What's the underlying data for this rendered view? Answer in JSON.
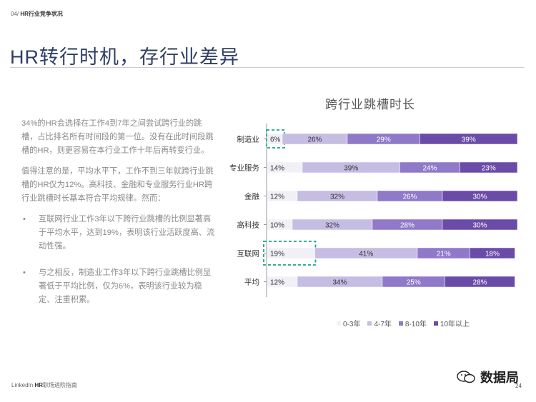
{
  "header": {
    "section_number": "04/",
    "section_name": "HR行业竞争状况",
    "title": "HR转行时机，存行业差异"
  },
  "body": {
    "paragraph1": "34%的HR会选择在工作4到7年之间尝试跨行业的跳槽，占比排名所有时间段的第一位。没有在此时间段跳槽的HR，则更容易在本行业工作十年后再转变行业。",
    "paragraph2": "值得注意的是，平均水平下，工作不到三年就跨行业跳槽的HR仅为12%。高科技、金融和专业服务行业HR跨行业跳槽时长基本符合平均规律。然而：",
    "bullets": [
      "互联网行业工作3年以下跨行业跳槽的比例显著高于平均水平，达到19%，表明该行业活跃度高、流动性强。",
      "与之相反，制造业工作3年以下跨行业跳槽比例显著低于平均比例，仅为6%，表明该行业较为稳定、注重积累。"
    ],
    "bullet_symbol": "•"
  },
  "chart_data": {
    "type": "bar",
    "orientation": "horizontal",
    "stacked": true,
    "normalized": true,
    "title": "跨行业跳槽时长",
    "categories": [
      "制造业",
      "专业服务",
      "金融",
      "高科技",
      "互联网",
      "平均"
    ],
    "series": [
      {
        "name": "0-3年",
        "values": [
          6,
          14,
          12,
          10,
          19,
          12
        ],
        "color": "#f2f0f7"
      },
      {
        "name": "4-7年",
        "values": [
          26,
          39,
          32,
          32,
          41,
          34
        ],
        "color": "#c6bde3"
      },
      {
        "name": "8-10年",
        "values": [
          29,
          24,
          26,
          28,
          21,
          25
        ],
        "color": "#8f79c8"
      },
      {
        "name": "10年以上",
        "values": [
          39,
          23,
          30,
          30,
          18,
          28
        ],
        "color": "#6a4ca8"
      }
    ],
    "value_suffix": "%",
    "highlighted": [
      {
        "category": "制造业",
        "series": "0-3年"
      },
      {
        "category": "互联网",
        "series": "0-3年"
      }
    ],
    "highlight_color": "#1aa38c",
    "legend_position": "bottom",
    "grid": false
  },
  "footer": {
    "brand": "LinkedIn",
    "doc_prefix": "HR",
    "doc_rest": "职场进阶指南",
    "page_number": "24",
    "watermark_text": "数据局"
  }
}
